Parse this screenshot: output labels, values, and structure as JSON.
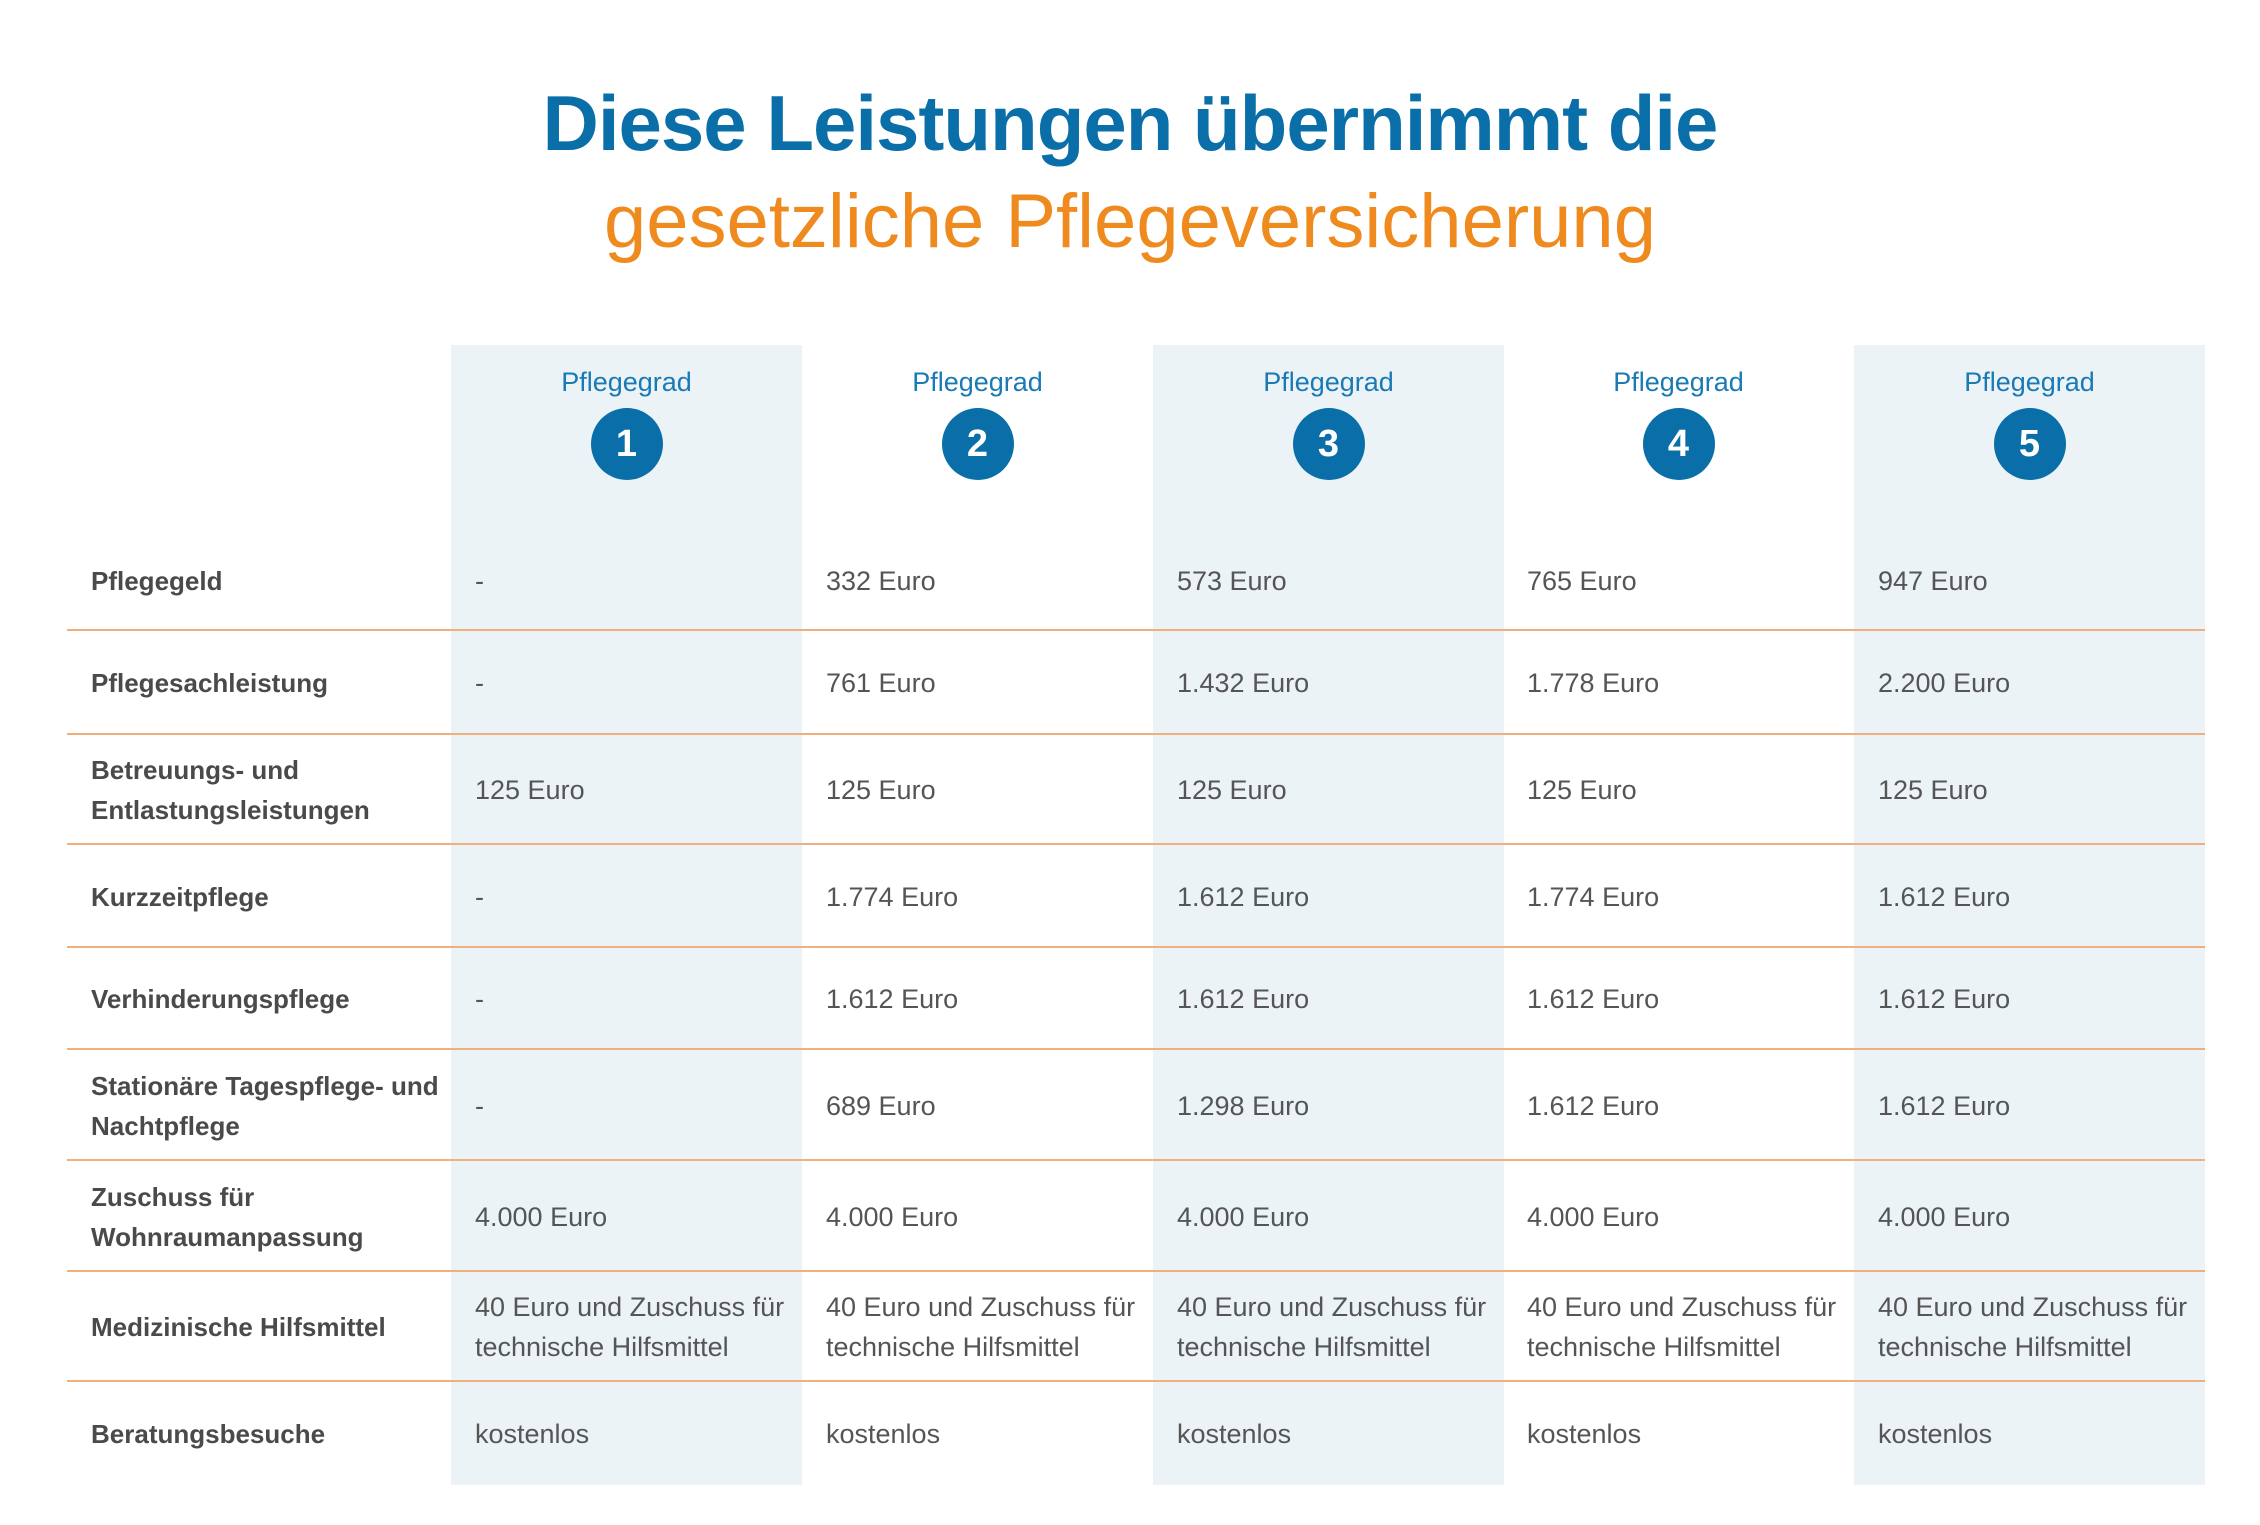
{
  "title": {
    "line1": "Diese Leistungen übernimmt die",
    "line2": "gesetzliche Pflegeversicherung"
  },
  "colors": {
    "blue": "#0a6fa8",
    "orange": "#ee8a1e",
    "divider": "#eeb07e",
    "column_shade": "#ecf3f7"
  },
  "columns": [
    {
      "label": "Pflegegrad",
      "number": "1"
    },
    {
      "label": "Pflegegrad",
      "number": "2"
    },
    {
      "label": "Pflegegrad",
      "number": "3"
    },
    {
      "label": "Pflegegrad",
      "number": "4"
    },
    {
      "label": "Pflegegrad",
      "number": "5"
    }
  ],
  "rows": [
    {
      "label": "Pflegegeld",
      "values": [
        "-",
        "332 Euro",
        "573 Euro",
        "765 Euro",
        "947 Euro"
      ]
    },
    {
      "label": "Pflegesachleistung",
      "values": [
        "-",
        "761 Euro",
        "1.432 Euro",
        "1.778 Euro",
        "2.200 Euro"
      ]
    },
    {
      "label": "Betreuungs- und Entlastungsleistungen",
      "values": [
        "125 Euro",
        "125 Euro",
        "125 Euro",
        "125 Euro",
        "125 Euro"
      ]
    },
    {
      "label": "Kurzzeitpflege",
      "values": [
        "-",
        "1.774 Euro",
        "1.612 Euro",
        "1.774 Euro",
        "1.612 Euro"
      ]
    },
    {
      "label": "Verhinderungspflege",
      "values": [
        "-",
        "1.612 Euro",
        "1.612 Euro",
        "1.612 Euro",
        "1.612 Euro"
      ]
    },
    {
      "label": "Stationäre Tagespflege- und Nachtpflege",
      "values": [
        "-",
        "689 Euro",
        "1.298 Euro",
        "1.612 Euro",
        "1.612 Euro"
      ]
    },
    {
      "label": "Zuschuss für Wohnraumanpassung",
      "values": [
        "4.000 Euro",
        "4.000 Euro",
        "4.000 Euro",
        "4.000 Euro",
        "4.000 Euro"
      ]
    },
    {
      "label": "Medizinische Hilfsmittel",
      "values": [
        "40 Euro und Zuschuss für technische Hilfsmittel",
        "40 Euro und Zuschuss für technische Hilfsmittel",
        "40 Euro und Zuschuss für technische Hilfsmittel",
        "40 Euro und Zuschuss für technische Hilfsmittel",
        "40 Euro und Zuschuss für technische Hilfsmittel"
      ]
    },
    {
      "label": "Beratungsbesuche",
      "values": [
        "kostenlos",
        "kostenlos",
        "kostenlos",
        "kostenlos",
        "kostenlos"
      ]
    }
  ]
}
